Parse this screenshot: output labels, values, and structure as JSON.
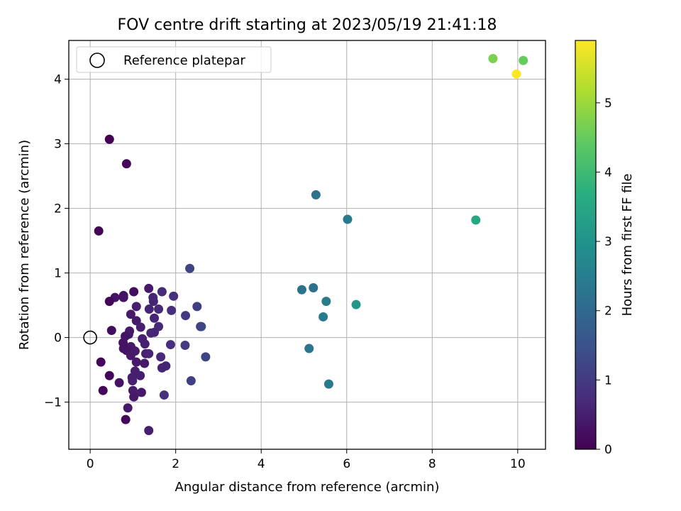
{
  "chart_data": {
    "type": "scatter",
    "title": "FOV centre drift starting at 2023/05/19 21:41:18",
    "xlabel": "Angular distance from reference (arcmin)",
    "ylabel": "Rotation from reference (arcmin)",
    "xlim": [
      -0.5,
      10.65
    ],
    "ylim": [
      -1.73,
      4.6
    ],
    "xticks": [
      0,
      2,
      4,
      6,
      8,
      10
    ],
    "yticks": [
      -1,
      0,
      1,
      2,
      3,
      4
    ],
    "grid": true,
    "legend": {
      "position": "top-left",
      "entries": [
        {
          "label": "Reference platepar",
          "marker": "open-circle"
        }
      ]
    },
    "reference_point": {
      "x": 0,
      "y": 0
    },
    "colorbar": {
      "label": "Hours from first FF file",
      "colormap": "viridis",
      "range": [
        0,
        5.9
      ],
      "ticks": [
        0,
        1,
        2,
        3,
        4,
        5
      ]
    },
    "points": [
      {
        "x": 0.45,
        "y": 3.07,
        "c": 0.0
      },
      {
        "x": 0.85,
        "y": 2.69,
        "c": 0.05
      },
      {
        "x": 0.2,
        "y": 1.65,
        "c": 0.05
      },
      {
        "x": 2.33,
        "y": 1.07,
        "c": 1.2
      },
      {
        "x": 1.37,
        "y": 0.76,
        "c": 0.4
      },
      {
        "x": 1.68,
        "y": 0.71,
        "c": 0.7
      },
      {
        "x": 1.02,
        "y": 0.71,
        "c": 0.2
      },
      {
        "x": 0.78,
        "y": 0.65,
        "c": 0.3
      },
      {
        "x": 1.95,
        "y": 0.64,
        "c": 0.8
      },
      {
        "x": 0.58,
        "y": 0.62,
        "c": 0.3
      },
      {
        "x": 0.78,
        "y": 0.62,
        "c": 0.3
      },
      {
        "x": 1.47,
        "y": 0.62,
        "c": 0.6
      },
      {
        "x": 0.45,
        "y": 0.56,
        "c": 0.1
      },
      {
        "x": 1.48,
        "y": 0.56,
        "c": 0.6
      },
      {
        "x": 1.08,
        "y": 0.48,
        "c": 0.5
      },
      {
        "x": 2.5,
        "y": 0.48,
        "c": 1.1
      },
      {
        "x": 1.38,
        "y": 0.44,
        "c": 0.6
      },
      {
        "x": 1.6,
        "y": 0.44,
        "c": 0.7
      },
      {
        "x": 1.9,
        "y": 0.42,
        "c": 0.8
      },
      {
        "x": 0.95,
        "y": 0.36,
        "c": 0.4
      },
      {
        "x": 2.23,
        "y": 0.34,
        "c": 1.0
      },
      {
        "x": 1.5,
        "y": 0.3,
        "c": 0.6
      },
      {
        "x": 1.08,
        "y": 0.26,
        "c": 0.4
      },
      {
        "x": 2.6,
        "y": 0.17,
        "c": 1.5
      },
      {
        "x": 2.58,
        "y": 0.17,
        "c": 1.2
      },
      {
        "x": 1.18,
        "y": 0.16,
        "c": 0.5
      },
      {
        "x": 1.6,
        "y": 0.17,
        "c": 0.7
      },
      {
        "x": 0.5,
        "y": 0.11,
        "c": 0.2
      },
      {
        "x": 0.92,
        "y": 0.1,
        "c": 0.4
      },
      {
        "x": 1.5,
        "y": 0.08,
        "c": 0.6
      },
      {
        "x": 0.9,
        "y": 0.05,
        "c": 0.4
      },
      {
        "x": 1.42,
        "y": 0.07,
        "c": 0.6
      },
      {
        "x": 0.82,
        "y": 0.02,
        "c": 0.3
      },
      {
        "x": 1.22,
        "y": -0.02,
        "c": 0.5
      },
      {
        "x": 0.77,
        "y": -0.08,
        "c": 0.3
      },
      {
        "x": 1.28,
        "y": -0.1,
        "c": 0.5
      },
      {
        "x": 1.88,
        "y": -0.11,
        "c": 0.8
      },
      {
        "x": 2.22,
        "y": -0.12,
        "c": 1.0
      },
      {
        "x": 0.95,
        "y": -0.14,
        "c": 0.4
      },
      {
        "x": 0.78,
        "y": -0.17,
        "c": 0.3
      },
      {
        "x": 0.85,
        "y": -0.2,
        "c": 0.3
      },
      {
        "x": 1.05,
        "y": -0.21,
        "c": 0.4
      },
      {
        "x": 1.3,
        "y": -0.25,
        "c": 0.5
      },
      {
        "x": 1.37,
        "y": -0.25,
        "c": 0.6
      },
      {
        "x": 0.95,
        "y": -0.28,
        "c": 0.4
      },
      {
        "x": 1.65,
        "y": -0.3,
        "c": 0.7
      },
      {
        "x": 2.7,
        "y": -0.3,
        "c": 1.2
      },
      {
        "x": 0.25,
        "y": -0.38,
        "c": 0.1
      },
      {
        "x": 1.08,
        "y": -0.38,
        "c": 0.4
      },
      {
        "x": 1.27,
        "y": -0.4,
        "c": 0.4
      },
      {
        "x": 1.77,
        "y": -0.44,
        "c": 0.6
      },
      {
        "x": 1.68,
        "y": -0.47,
        "c": 0.6
      },
      {
        "x": 1.05,
        "y": -0.52,
        "c": 0.5
      },
      {
        "x": 0.45,
        "y": -0.59,
        "c": 0.1
      },
      {
        "x": 1.17,
        "y": -0.59,
        "c": 0.5
      },
      {
        "x": 0.98,
        "y": -0.62,
        "c": 0.5
      },
      {
        "x": 0.99,
        "y": -0.67,
        "c": 0.5
      },
      {
        "x": 2.36,
        "y": -0.67,
        "c": 1.1
      },
      {
        "x": 0.68,
        "y": -0.7,
        "c": 0.3
      },
      {
        "x": 0.3,
        "y": -0.82,
        "c": 0.1
      },
      {
        "x": 1.0,
        "y": -0.82,
        "c": 0.4
      },
      {
        "x": 1.2,
        "y": -0.85,
        "c": 0.4
      },
      {
        "x": 1.05,
        "y": -0.87,
        "c": 0.5
      },
      {
        "x": 1.73,
        "y": -0.89,
        "c": 0.8
      },
      {
        "x": 1.02,
        "y": -0.92,
        "c": 0.4
      },
      {
        "x": 0.88,
        "y": -1.09,
        "c": 0.4
      },
      {
        "x": 0.83,
        "y": -1.27,
        "c": 0.1
      },
      {
        "x": 1.37,
        "y": -1.44,
        "c": 0.5
      },
      {
        "x": 5.28,
        "y": 2.21,
        "c": 2.2
      },
      {
        "x": 6.02,
        "y": 1.83,
        "c": 2.4
      },
      {
        "x": 4.95,
        "y": 0.74,
        "c": 2.2
      },
      {
        "x": 5.22,
        "y": 0.77,
        "c": 2.2
      },
      {
        "x": 5.52,
        "y": 0.56,
        "c": 2.4
      },
      {
        "x": 5.45,
        "y": 0.32,
        "c": 2.4
      },
      {
        "x": 5.12,
        "y": -0.17,
        "c": 2.3
      },
      {
        "x": 5.58,
        "y": -0.72,
        "c": 2.4
      },
      {
        "x": 6.22,
        "y": 0.51,
        "c": 3.1
      },
      {
        "x": 9.02,
        "y": 1.82,
        "c": 3.5
      },
      {
        "x": 9.42,
        "y": 4.32,
        "c": 4.7
      },
      {
        "x": 10.13,
        "y": 4.29,
        "c": 4.5
      },
      {
        "x": 9.97,
        "y": 4.08,
        "c": 5.9
      }
    ]
  }
}
